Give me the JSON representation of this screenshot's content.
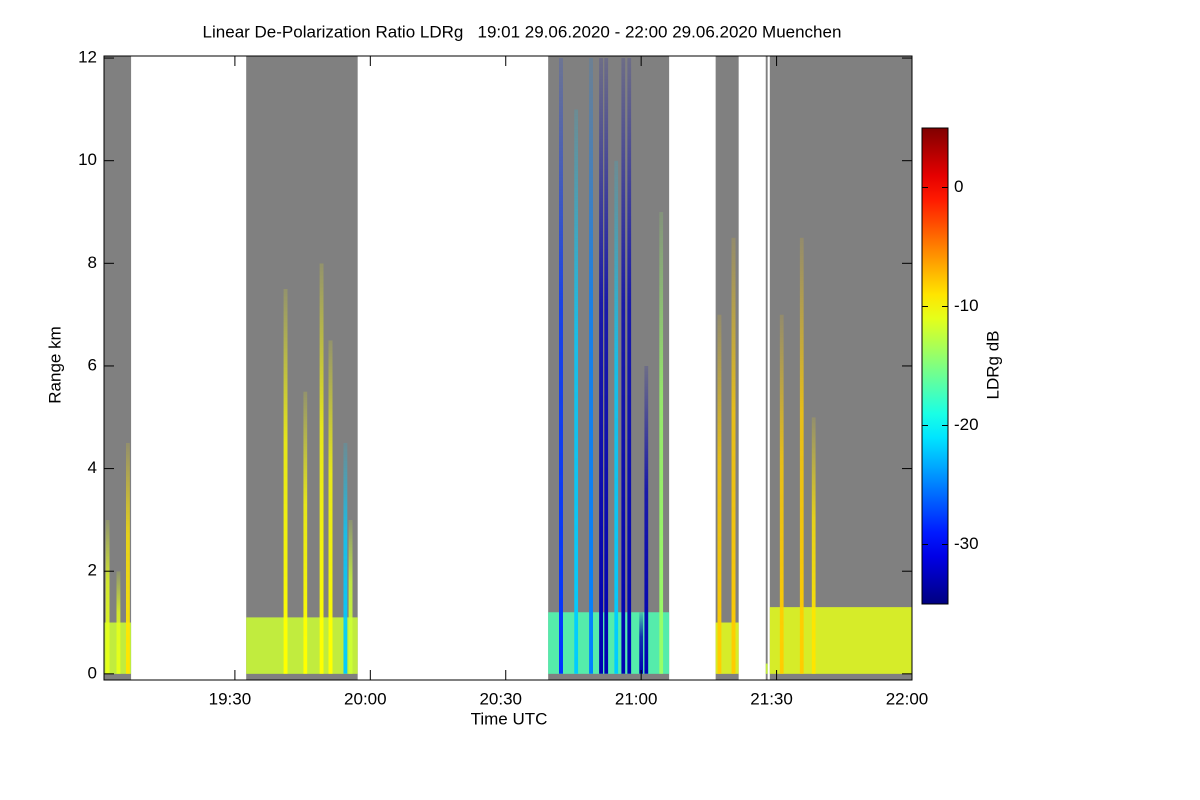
{
  "chart_data": {
    "type": "heatmap",
    "title": "Linear De-Polarization Ratio LDRg   19:01 29.06.2020 - 22:00 29.06.2020 Muenchen",
    "x_label": "Time UTC",
    "y_label": "Range km",
    "colorbar_label": "LDRg dB",
    "xlim": [
      19.0167,
      22.0
    ],
    "xticks": [
      {
        "value": 19.5,
        "label": "19:30"
      },
      {
        "value": 20.0,
        "label": "20:00"
      },
      {
        "value": 20.5,
        "label": "20:30"
      },
      {
        "value": 21.0,
        "label": "21:00"
      },
      {
        "value": 21.5,
        "label": "21:30"
      },
      {
        "value": 22.0,
        "label": "22:00"
      }
    ],
    "ylim": [
      -0.12,
      12.04
    ],
    "yticks": [
      0,
      2,
      4,
      6,
      8,
      10,
      12
    ],
    "clim": [
      -35,
      5
    ],
    "cticks": [
      0,
      -10,
      -20,
      -30
    ],
    "colormap": "jet",
    "background_color": "#808080",
    "periods": [
      {
        "start": 19.0167,
        "end": 19.1167,
        "layer_top": 1.0,
        "layer_ldr": -12
      },
      {
        "start": 19.5417,
        "end": 19.9533,
        "layer_top": 1.1,
        "layer_ldr": -12
      },
      {
        "start": 20.6567,
        "end": 21.1033,
        "layer_top": 1.2,
        "layer_ldr": -17
      },
      {
        "start": 21.275,
        "end": 21.36,
        "layer_top": 1.0,
        "layer_ldr": -11
      },
      {
        "start": 21.46,
        "end": 21.467,
        "layer_top": 0.2,
        "layer_ldr": -12
      },
      {
        "start": 21.475,
        "end": 22.0,
        "layer_top": 1.3,
        "layer_ldr": -11
      }
    ],
    "streaks": [
      {
        "x": 19.03,
        "top": 3.0,
        "ldr": -11
      },
      {
        "x": 19.07,
        "top": 2.0,
        "ldr": -11
      },
      {
        "x": 19.105,
        "top": 4.5,
        "ldr": -9
      },
      {
        "x": 19.687,
        "top": 7.5,
        "ldr": -10
      },
      {
        "x": 19.76,
        "top": 5.5,
        "ldr": -10
      },
      {
        "x": 19.82,
        "top": 8.0,
        "ldr": -10
      },
      {
        "x": 19.853,
        "top": 6.5,
        "ldr": -10
      },
      {
        "x": 19.908,
        "top": 4.5,
        "ldr": -22
      },
      {
        "x": 19.927,
        "top": 3.0,
        "ldr": -12
      },
      {
        "x": 20.704,
        "top": 12.0,
        "ldr": -28
      },
      {
        "x": 20.76,
        "top": 11.0,
        "ldr": -22
      },
      {
        "x": 20.815,
        "top": 12.0,
        "ldr": -25
      },
      {
        "x": 20.852,
        "top": 12.0,
        "ldr": -33
      },
      {
        "x": 20.871,
        "top": 12.0,
        "ldr": -33
      },
      {
        "x": 20.908,
        "top": 10.0,
        "ldr": -22
      },
      {
        "x": 20.934,
        "top": 12.0,
        "ldr": -33
      },
      {
        "x": 20.956,
        "top": 12.0,
        "ldr": -33
      },
      {
        "x": 21.0,
        "top": 1.2,
        "ldr": -33
      },
      {
        "x": 21.019,
        "top": 6.0,
        "ldr": -33
      },
      {
        "x": 21.074,
        "top": 9.0,
        "ldr": -14
      },
      {
        "x": 21.289,
        "top": 7.0,
        "ldr": -8
      },
      {
        "x": 21.341,
        "top": 8.5,
        "ldr": -8
      },
      {
        "x": 21.519,
        "top": 7.0,
        "ldr": -8
      },
      {
        "x": 21.593,
        "top": 8.5,
        "ldr": -8
      },
      {
        "x": 21.637,
        "top": 5.0,
        "ldr": -9
      }
    ]
  }
}
